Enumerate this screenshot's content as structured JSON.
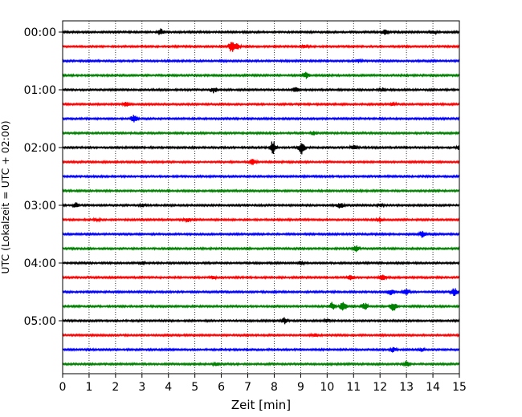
{
  "chart_data": {
    "type": "line",
    "xlabel": "Zeit  [min]",
    "ylabel": "UTC (Lokalzeit = UTC + 02:00)",
    "xlim": [
      0,
      15
    ],
    "x_ticks": [
      0,
      1,
      2,
      3,
      4,
      5,
      6,
      7,
      8,
      9,
      10,
      11,
      12,
      13,
      14,
      15
    ],
    "x_tick_labels": [
      "0",
      "1",
      "2",
      "3",
      "4",
      "5",
      "6",
      "7",
      "8",
      "9",
      "10",
      "11",
      "12",
      "13",
      "14",
      "15"
    ],
    "y_tick_labels": [
      "00:00",
      "01:00",
      "02:00",
      "03:00",
      "04:00",
      "05:00"
    ],
    "grid": "vertical-dotted",
    "trace_interval_minutes": 15,
    "colors": [
      "#000000",
      "#ff0000",
      "#0000ff",
      "#008000"
    ],
    "traces": [
      {
        "start": "00:00",
        "color": "#000000",
        "events": [
          {
            "t": 3.7,
            "amp": 4
          },
          {
            "t": 12.2,
            "amp": 4
          },
          {
            "t": 14.0,
            "amp": 2
          }
        ]
      },
      {
        "start": "00:15",
        "color": "#ff0000",
        "events": [
          {
            "t": 6.4,
            "amp": 8
          },
          {
            "t": 6.6,
            "amp": 4
          },
          {
            "t": 9.2,
            "amp": 2
          }
        ]
      },
      {
        "start": "00:30",
        "color": "#0000ff",
        "events": [
          {
            "t": 11.2,
            "amp": 2
          }
        ]
      },
      {
        "start": "00:45",
        "color": "#008000",
        "events": [
          {
            "t": 9.2,
            "amp": 4
          }
        ]
      },
      {
        "start": "01:00",
        "color": "#000000",
        "events": [
          {
            "t": 5.7,
            "amp": 4
          },
          {
            "t": 8.8,
            "amp": 3
          },
          {
            "t": 12.1,
            "amp": 2
          }
        ]
      },
      {
        "start": "01:15",
        "color": "#ff0000",
        "events": [
          {
            "t": 2.4,
            "amp": 3
          },
          {
            "t": 12.5,
            "amp": 2
          }
        ]
      },
      {
        "start": "01:30",
        "color": "#0000ff",
        "events": [
          {
            "t": 2.7,
            "amp": 5
          }
        ]
      },
      {
        "start": "01:45",
        "color": "#008000",
        "events": [
          {
            "t": 9.5,
            "amp": 2
          }
        ]
      },
      {
        "start": "02:00",
        "color": "#000000",
        "events": [
          {
            "t": 7.95,
            "amp": 9
          },
          {
            "t": 9.05,
            "amp": 8
          },
          {
            "t": 11.0,
            "amp": 3
          },
          {
            "t": 15.0,
            "amp": 3
          }
        ]
      },
      {
        "start": "02:15",
        "color": "#ff0000",
        "events": [
          {
            "t": 7.2,
            "amp": 4
          }
        ]
      },
      {
        "start": "02:30",
        "color": "#0000ff",
        "events": []
      },
      {
        "start": "02:45",
        "color": "#008000",
        "events": []
      },
      {
        "start": "03:00",
        "color": "#000000",
        "events": [
          {
            "t": 0.5,
            "amp": 3
          },
          {
            "t": 3.0,
            "amp": 2
          },
          {
            "t": 10.5,
            "amp": 4
          },
          {
            "t": 12.0,
            "amp": 2
          }
        ]
      },
      {
        "start": "03:15",
        "color": "#ff0000",
        "events": [
          {
            "t": 1.3,
            "amp": 2
          },
          {
            "t": 4.7,
            "amp": 3
          },
          {
            "t": 12.0,
            "amp": 3
          }
        ]
      },
      {
        "start": "03:30",
        "color": "#0000ff",
        "events": [
          {
            "t": 13.6,
            "amp": 5
          }
        ]
      },
      {
        "start": "03:45",
        "color": "#008000",
        "events": [
          {
            "t": 11.1,
            "amp": 4
          }
        ]
      },
      {
        "start": "04:00",
        "color": "#000000",
        "events": [
          {
            "t": 3.0,
            "amp": 2
          },
          {
            "t": 9.0,
            "amp": 2
          }
        ]
      },
      {
        "start": "04:15",
        "color": "#ff0000",
        "events": [
          {
            "t": 5.7,
            "amp": 2
          },
          {
            "t": 10.9,
            "amp": 3
          },
          {
            "t": 12.1,
            "amp": 5
          }
        ]
      },
      {
        "start": "04:30",
        "color": "#0000ff",
        "events": [
          {
            "t": 12.4,
            "amp": 4
          },
          {
            "t": 13.0,
            "amp": 5
          },
          {
            "t": 14.8,
            "amp": 5
          }
        ]
      },
      {
        "start": "04:45",
        "color": "#008000",
        "events": [
          {
            "t": 10.2,
            "amp": 5
          },
          {
            "t": 10.6,
            "amp": 7
          },
          {
            "t": 11.4,
            "amp": 5
          },
          {
            "t": 12.5,
            "amp": 6
          }
        ]
      },
      {
        "start": "05:00",
        "color": "#000000",
        "events": [
          {
            "t": 8.4,
            "amp": 4
          },
          {
            "t": 10.0,
            "amp": 2
          }
        ]
      },
      {
        "start": "05:15",
        "color": "#ff0000",
        "events": [
          {
            "t": 9.5,
            "amp": 2
          }
        ]
      },
      {
        "start": "05:30",
        "color": "#0000ff",
        "events": [
          {
            "t": 12.5,
            "amp": 3
          },
          {
            "t": 13.6,
            "amp": 2
          }
        ]
      },
      {
        "start": "05:45",
        "color": "#008000",
        "events": [
          {
            "t": 5.8,
            "amp": 2
          },
          {
            "t": 13.0,
            "amp": 4
          }
        ]
      }
    ]
  }
}
